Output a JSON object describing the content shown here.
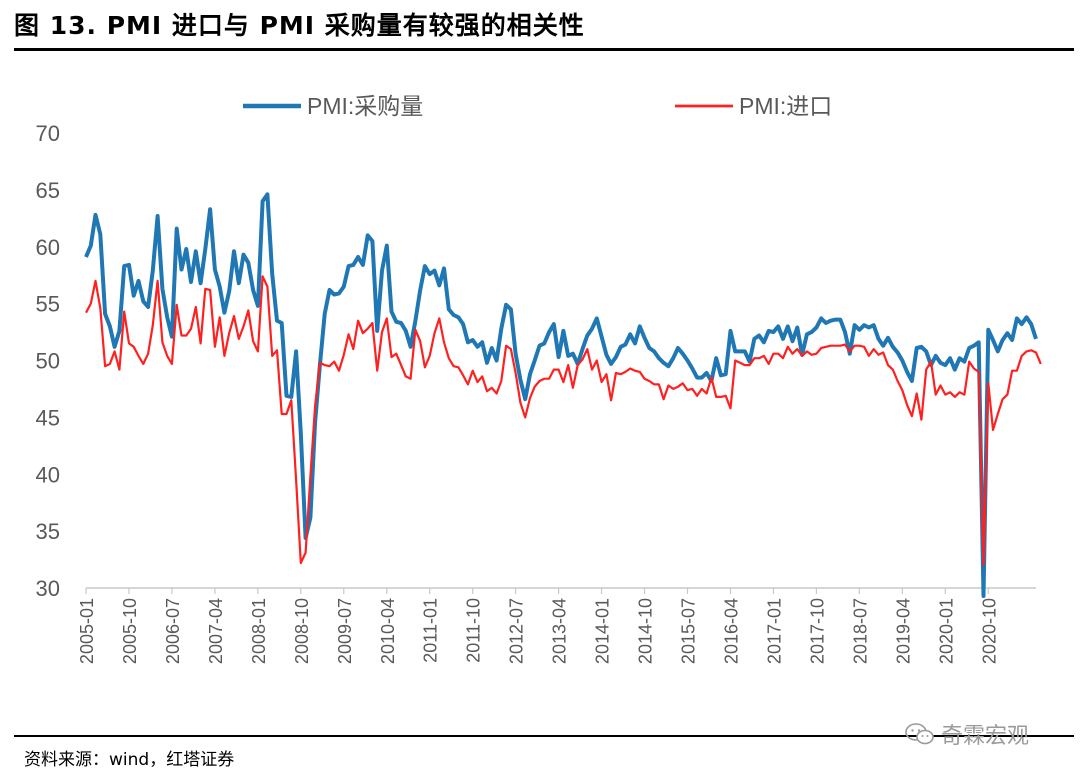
{
  "figure": {
    "title": "图 13. PMI 进口与 PMI 采购量有较强的相关性",
    "source": "资料来源：wind，红塔证券",
    "watermark": "奇霖宏观",
    "watermark_icon": "wechat-icon"
  },
  "colors": {
    "series_purchase": "#1f77b4",
    "series_import": "#ff2020",
    "axis": "#c8c8c8"
  },
  "chart_data": {
    "type": "line",
    "title": "",
    "xlabel": "",
    "ylabel": "",
    "ylim": [
      30,
      70
    ],
    "yticks": [
      30,
      35,
      40,
      45,
      50,
      55,
      60,
      65,
      70
    ],
    "grid": false,
    "legend_position": "top",
    "x_start": "2005-01",
    "x_end": "2021-03",
    "x_tick_labels": [
      "2005-01",
      "2005-10",
      "2006-07",
      "2007-04",
      "2008-01",
      "2008-10",
      "2009-07",
      "2010-04",
      "2011-01",
      "2011-10",
      "2012-07",
      "2013-04",
      "2014-01",
      "2014-10",
      "2015-07",
      "2016-04",
      "2017-01",
      "2017-10",
      "2018-07",
      "2019-04",
      "2020-01",
      "2020-10"
    ],
    "series": [
      {
        "name": "PMI:采购量",
        "color": "#1f77b4",
        "values": [
          59.1,
          60.1,
          62.8,
          61.1,
          54.1,
          53.0,
          51.2,
          52.6,
          58.3,
          58.4,
          55.7,
          57.0,
          55.2,
          54.7,
          57.9,
          62.7,
          56.3,
          53.8,
          52.1,
          61.6,
          58.0,
          59.8,
          56.9,
          59.6,
          56.8,
          59.8,
          63.3,
          58.0,
          56.5,
          54.2,
          56.1,
          59.6,
          56.8,
          59.3,
          58.6,
          56.2,
          54.8,
          64.0,
          64.6,
          57.6,
          53.5,
          53.3,
          46.9,
          46.8,
          50.8,
          43.6,
          34.4,
          36.2,
          44.6,
          49.6,
          54.1,
          56.2,
          55.8,
          55.9,
          56.5,
          58.3,
          58.4,
          59.1,
          58.4,
          61.0,
          60.5,
          52.6,
          57.9,
          60.1,
          54.3,
          53.4,
          53.3,
          52.6,
          51.2,
          53.5,
          56.2,
          58.3,
          57.6,
          57.9,
          56.6,
          58.1,
          54.5,
          54.0,
          53.8,
          53.2,
          51.6,
          51.8,
          51.2,
          51.6,
          49.8,
          51.1,
          50.0,
          52.8,
          54.9,
          54.5,
          50.6,
          48.3,
          46.6,
          48.8,
          50.0,
          51.3,
          51.5,
          52.5,
          53.2,
          50.3,
          52.6,
          50.4,
          50.6,
          49.7,
          51.0,
          52.2,
          52.8,
          53.7,
          52.1,
          50.5,
          49.7,
          50.3,
          51.2,
          51.4,
          52.3,
          51.5,
          53.0,
          52.0,
          51.1,
          50.8,
          50.2,
          49.8,
          49.5,
          50.2,
          51.1,
          50.6,
          50.0,
          49.3,
          48.5,
          48.5,
          48.9,
          48.2,
          50.2,
          48.7,
          48.8,
          52.6,
          50.8,
          50.8,
          50.8,
          49.9,
          51.9,
          52.2,
          51.6,
          52.6,
          52.5,
          53.0,
          51.9,
          53.0,
          51.7,
          52.9,
          50.5,
          52.3,
          52.5,
          52.9,
          53.7,
          53.3,
          53.5,
          53.6,
          53.6,
          52.5,
          50.6,
          53.1,
          52.7,
          53.1,
          52.9,
          53.1,
          51.9,
          51.3,
          52.0,
          51.2,
          50.7,
          50.0,
          49.0,
          48.2,
          51.1,
          51.2,
          50.8,
          49.6,
          50.4,
          49.8,
          49.6,
          50.2,
          49.2,
          50.2,
          49.9,
          51.1,
          51.3,
          51.6,
          29.3,
          52.7,
          51.8,
          50.8,
          51.8,
          52.4,
          51.8,
          53.7,
          53.2,
          53.8,
          53.2,
          51.9
        ]
      },
      {
        "name": "PMI:进口",
        "color": "#ff2020",
        "values": [
          54.2,
          55.0,
          57.0,
          54.6,
          49.5,
          49.7,
          50.8,
          49.2,
          54.3,
          51.5,
          51.2,
          50.4,
          49.7,
          50.6,
          53.1,
          57.0,
          51.6,
          50.4,
          49.7,
          54.9,
          52.2,
          52.2,
          52.8,
          54.7,
          51.5,
          56.3,
          56.2,
          51.2,
          53.8,
          50.4,
          52.4,
          53.9,
          51.9,
          53.0,
          54.4,
          51.7,
          50.8,
          57.4,
          56.5,
          50.4,
          50.9,
          45.3,
          45.3,
          46.5,
          39.5,
          32.2,
          33.1,
          39.8,
          46.0,
          49.8,
          49.6,
          49.5,
          49.9,
          49.1,
          50.5,
          52.3,
          51.0,
          53.5,
          52.4,
          52.8,
          53.3,
          49.1,
          52.5,
          53.7,
          50.3,
          50.6,
          49.6,
          48.6,
          48.4,
          52.7,
          51.7,
          49.4,
          50.4,
          52.4,
          53.7,
          51.6,
          50.2,
          49.5,
          49.4,
          48.7,
          47.9,
          49.1,
          48.1,
          48.6,
          47.3,
          47.6,
          47.1,
          48.2,
          51.3,
          51.0,
          48.9,
          46.3,
          45.0,
          46.7,
          47.7,
          48.2,
          48.4,
          48.4,
          49.2,
          49.2,
          48.1,
          49.6,
          47.6,
          49.6,
          50.1,
          51.0,
          49.2,
          50.0,
          48.1,
          48.8,
          46.5,
          48.9,
          48.8,
          49.0,
          49.3,
          49.1,
          49.0,
          48.4,
          48.2,
          47.9,
          47.9,
          46.6,
          47.8,
          47.5,
          47.7,
          48.0,
          47.4,
          47.5,
          46.9,
          47.5,
          47.1,
          48.5,
          46.8,
          46.8,
          46.9,
          45.8,
          50.0,
          49.8,
          49.6,
          49.6,
          50.2,
          50.2,
          50.4,
          49.7,
          50.6,
          50.6,
          50.2,
          51.2,
          50.6,
          51.0,
          50.4,
          50.8,
          50.5,
          50.6,
          51.1,
          51.2,
          51.3,
          51.3,
          51.3,
          51.4,
          50.8,
          51.3,
          51.3,
          51.2,
          50.4,
          51.0,
          50.5,
          50.7,
          49.6,
          49.2,
          48.2,
          47.4,
          46.1,
          45.1,
          47.1,
          44.8,
          49.2,
          49.9,
          47.0,
          47.8,
          47.0,
          47.2,
          46.8,
          47.2,
          47.0,
          49.9,
          49.3,
          49.0,
          32.0,
          48.0,
          43.9,
          45.3,
          46.6,
          47.0,
          49.1,
          49.1,
          50.4,
          50.8,
          50.9,
          50.7,
          49.7
        ]
      }
    ]
  }
}
